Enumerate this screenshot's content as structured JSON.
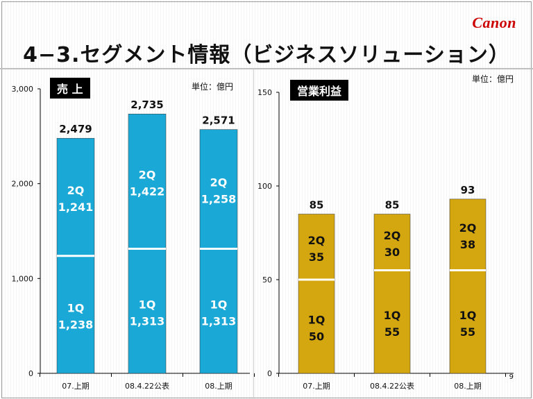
{
  "brand": "Canon",
  "title": "4−3.セグメント情報（ビジネスソリューション）",
  "page_number": "9",
  "colors": {
    "sales_bar": "#1aa8d6",
    "profit_bar": "#d4a60f",
    "label_bg": "#000000"
  },
  "chart_data": [
    {
      "type": "bar",
      "label": "売 上",
      "unit": "単位：億円",
      "categories": [
        "07.上期",
        "08.4.22公表",
        "08.上期"
      ],
      "ylim": [
        0,
        3000
      ],
      "yticks": [
        0,
        1000,
        2000,
        3000
      ],
      "ytick_labels": [
        "0",
        "1,000",
        "2,000",
        "3,000"
      ],
      "stacked": true,
      "series": [
        {
          "name": "1Q",
          "values": [
            1238,
            1313,
            1313
          ],
          "labels": [
            "1,238",
            "1,313",
            "1,313"
          ]
        },
        {
          "name": "2Q",
          "values": [
            1241,
            1422,
            1258
          ],
          "labels": [
            "1,241",
            "1,422",
            "1,258"
          ]
        }
      ],
      "totals": [
        2479,
        2735,
        2571
      ],
      "total_labels": [
        "2,479",
        "2,735",
        "2,571"
      ]
    },
    {
      "type": "bar",
      "label": "営業利益",
      "unit": "単位：億円",
      "categories": [
        "07.上期",
        "08.4.22公表",
        "08.上期"
      ],
      "ylim": [
        0,
        150
      ],
      "yticks": [
        0,
        50,
        100,
        150
      ],
      "ytick_labels": [
        "0",
        "50",
        "100",
        "150"
      ],
      "stacked": true,
      "series": [
        {
          "name": "1Q",
          "values": [
            50,
            55,
            55
          ],
          "labels": [
            "50",
            "55",
            "55"
          ]
        },
        {
          "name": "2Q",
          "values": [
            35,
            30,
            38
          ],
          "labels": [
            "35",
            "30",
            "38"
          ]
        }
      ],
      "totals": [
        85,
        85,
        93
      ],
      "total_labels": [
        "85",
        "85",
        "93"
      ]
    }
  ]
}
